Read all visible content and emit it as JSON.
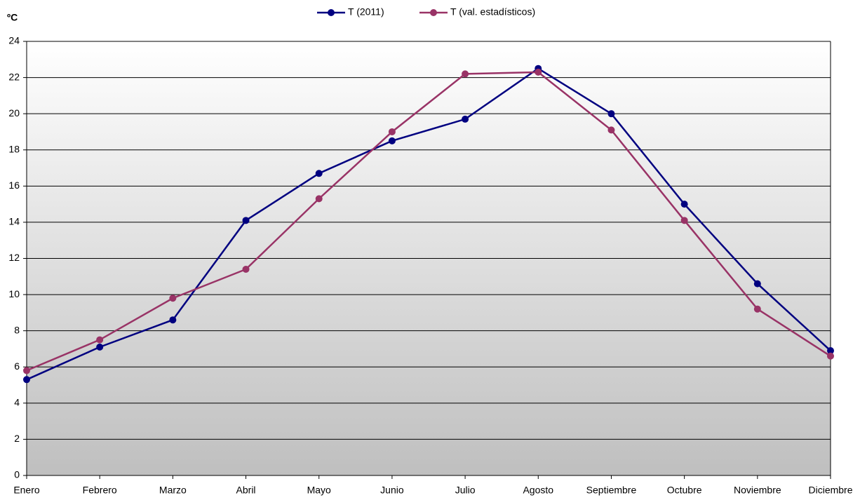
{
  "chart_data": {
    "type": "line",
    "y_label": "ºC",
    "categories": [
      "Enero",
      "Febrero",
      "Marzo",
      "Abril",
      "Mayo",
      "Junio",
      "Julio",
      "Agosto",
      "Septiembre",
      "Octubre",
      "Noviembre",
      "Diciembre"
    ],
    "series": [
      {
        "name": "T (2011)",
        "color": "#000080",
        "values": [
          5.3,
          7.1,
          8.6,
          14.1,
          16.7,
          18.5,
          19.7,
          22.5,
          20.0,
          15.0,
          10.6,
          6.9
        ]
      },
      {
        "name": "T (val. estadísticos)",
        "color": "#993366",
        "values": [
          5.8,
          7.5,
          9.8,
          11.4,
          15.3,
          19.0,
          22.2,
          22.3,
          19.1,
          14.1,
          9.2,
          6.6
        ]
      }
    ],
    "ylim": [
      0,
      24
    ],
    "yticks": [
      0,
      2,
      4,
      6,
      8,
      10,
      12,
      14,
      16,
      18,
      20,
      22,
      24
    ],
    "grid": true,
    "legend": "top"
  }
}
